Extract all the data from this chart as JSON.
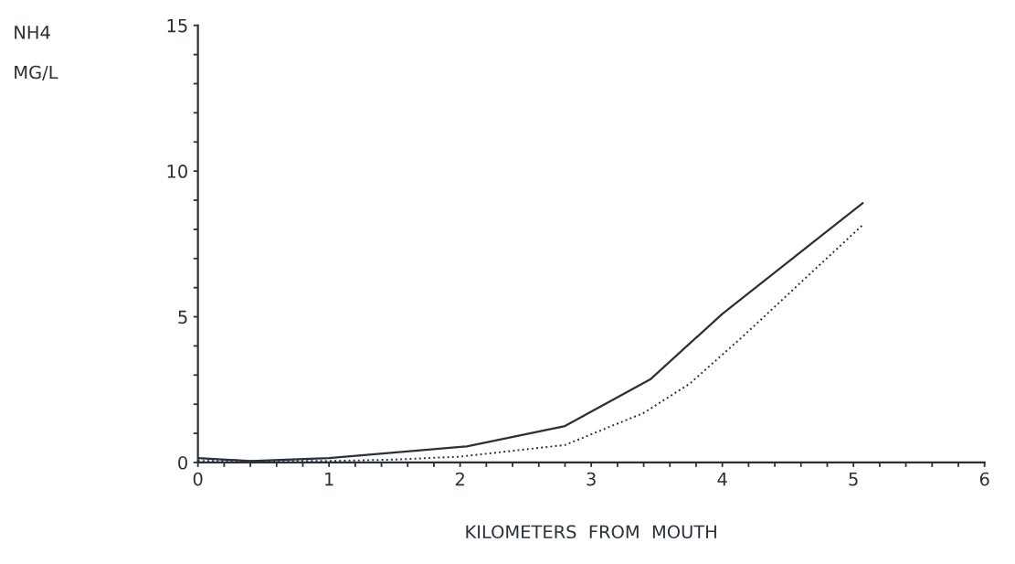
{
  "chart_data": {
    "type": "line",
    "xlabel": "KILOMETERS  FROM  MOUTH",
    "ylabel": "NH4\n\nMG/L",
    "xlim": [
      0,
      6
    ],
    "ylim": [
      0,
      15
    ],
    "xticks": [
      0,
      {
        "value": 0.2,
        "label": null
      },
      {
        "value": 0.4,
        "label": null
      },
      {
        "value": 0.6,
        "label": null
      },
      {
        "value": 0.8,
        "label": null
      },
      1,
      {
        "value": 1.2,
        "label": null
      },
      {
        "value": 1.4,
        "label": null
      },
      {
        "value": 1.6,
        "label": null
      },
      {
        "value": 1.8,
        "label": null
      },
      2,
      {
        "value": 2.2,
        "label": null
      },
      {
        "value": 2.4,
        "label": null
      },
      {
        "value": 2.6,
        "label": null
      },
      {
        "value": 2.8,
        "label": null
      },
      3,
      {
        "value": 3.2,
        "label": null
      },
      {
        "value": 3.4,
        "label": null
      },
      {
        "value": 3.6,
        "label": null
      },
      {
        "value": 3.8,
        "label": null
      },
      4,
      {
        "value": 4.2,
        "label": null
      },
      {
        "value": 4.4,
        "label": null
      },
      {
        "value": 4.6,
        "label": null
      },
      {
        "value": 4.8,
        "label": null
      },
      5,
      {
        "value": 5.2,
        "label": null
      },
      {
        "value": 5.4,
        "label": null
      },
      {
        "value": 5.6,
        "label": null
      },
      {
        "value": 5.8,
        "label": null
      },
      6
    ],
    "yticks": [
      0,
      {
        "value": 1,
        "label": null
      },
      {
        "value": 2,
        "label": null
      },
      {
        "value": 3,
        "label": null
      },
      {
        "value": 4,
        "label": null
      },
      5,
      {
        "value": 6,
        "label": null
      },
      {
        "value": 7,
        "label": null
      },
      {
        "value": 8,
        "label": null
      },
      {
        "value": 9,
        "label": null
      },
      10,
      {
        "value": 11,
        "label": null
      },
      {
        "value": 12,
        "label": null
      },
      {
        "value": 13,
        "label": null
      },
      {
        "value": 14,
        "label": null
      },
      15
    ],
    "grid": false,
    "series": [
      {
        "color": "#2a3038",
        "line_style": "solid",
        "x": [
          0,
          0.4,
          1,
          2.05,
          2.8,
          3.45,
          4.0,
          5.07
        ],
        "values": [
          0.15,
          0.05,
          0.15,
          0.55,
          1.25,
          2.85,
          5.1,
          8.9
        ]
      },
      {
        "color": "#2a3038",
        "line_style": "dotted",
        "x": [
          0,
          1,
          1.5,
          2.0,
          2.8,
          3.4,
          3.75,
          4.15,
          5.07
        ],
        "values": [
          0.05,
          0.05,
          0.1,
          0.2,
          0.6,
          1.7,
          2.7,
          4.3,
          8.15
        ]
      }
    ]
  }
}
